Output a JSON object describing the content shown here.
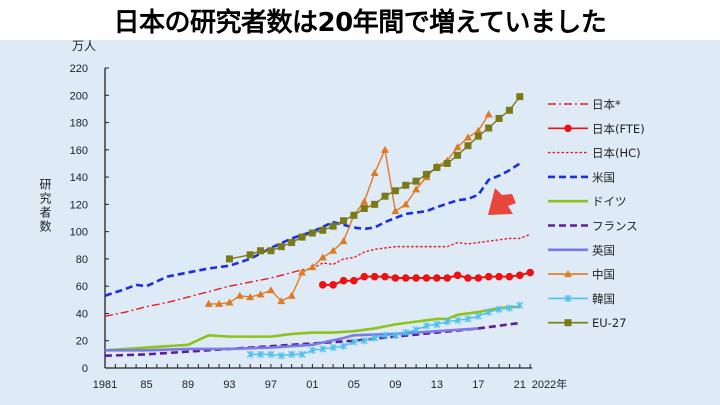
{
  "title": "日本の研究者数は20年間で増えていました",
  "chart_data": {
    "type": "line",
    "unit_label": "万人",
    "ylabel": "研究者数",
    "xlabel_suffix": "2022年",
    "ylim": [
      0,
      220
    ],
    "yticks": [
      0,
      20,
      40,
      60,
      80,
      100,
      120,
      140,
      160,
      180,
      200,
      220
    ],
    "xlim": [
      1981,
      2022
    ],
    "xtick_labels": [
      "1981",
      "85",
      "89",
      "93",
      "97",
      "01",
      "05",
      "09",
      "13",
      "17",
      "21"
    ],
    "xtick_years": [
      1981,
      1985,
      1989,
      1993,
      1997,
      2001,
      2005,
      2009,
      2013,
      2017,
      2021
    ],
    "legend_position": "right",
    "grid": false,
    "annotation": {
      "type": "arrow",
      "color": "#e8453c",
      "points_to": "日本(HC) 2017"
    },
    "series": [
      {
        "name": "日本*",
        "color": "#e02020",
        "style": "dashdot",
        "marker": "none",
        "x": [
          1981,
          1983,
          1985,
          1987,
          1989,
          1991,
          1993,
          1995,
          1997,
          1999,
          2000,
          2001
        ],
        "y": [
          38,
          41,
          45,
          48,
          52,
          56,
          60,
          63,
          66,
          70,
          72,
          73
        ]
      },
      {
        "name": "日本(FTE)",
        "color": "#ee1111",
        "style": "solid",
        "marker": "circle",
        "x": [
          2002,
          2003,
          2004,
          2005,
          2006,
          2007,
          2008,
          2009,
          2010,
          2011,
          2012,
          2013,
          2014,
          2015,
          2016,
          2017,
          2018,
          2019,
          2020,
          2021,
          2022
        ],
        "y": [
          61,
          61,
          64,
          64,
          67,
          67,
          67,
          66,
          66,
          66,
          66,
          66,
          66,
          68,
          66,
          66,
          67,
          67,
          67,
          68,
          70
        ]
      },
      {
        "name": "日本(HC)",
        "color": "#e02020",
        "style": "dotted",
        "marker": "none",
        "x": [
          2001,
          2002,
          2003,
          2004,
          2005,
          2006,
          2007,
          2008,
          2009,
          2010,
          2011,
          2012,
          2013,
          2014,
          2015,
          2016,
          2017,
          2018,
          2019,
          2020,
          2021,
          2022
        ],
        "y": [
          73,
          77,
          76,
          80,
          81,
          85,
          87,
          88,
          89,
          89,
          89,
          89,
          89,
          89,
          92,
          91,
          92,
          93,
          94,
          95,
          95,
          98
        ]
      },
      {
        "name": "米国",
        "color": "#1a2ee0",
        "style": "dashed",
        "marker": "none",
        "x": [
          1981,
          1983,
          1984,
          1985,
          1987,
          1989,
          1991,
          1993,
          1995,
          1997,
          1999,
          2001,
          2003,
          2004,
          2005,
          2006,
          2007,
          2008,
          2009,
          2010,
          2011,
          2012,
          2013,
          2015,
          2016,
          2017,
          2018,
          2019,
          2020,
          2021
        ],
        "y": [
          53,
          58,
          61,
          60,
          67,
          70,
          73,
          75,
          80,
          88,
          95,
          100,
          107,
          105,
          103,
          102,
          103,
          107,
          110,
          113,
          114,
          115,
          118,
          123,
          124,
          127,
          138,
          141,
          145,
          150
        ]
      },
      {
        "name": "ドイツ",
        "color": "#8cc41a",
        "style": "solid",
        "marker": "none",
        "x": [
          1981,
          1985,
          1989,
          1991,
          1993,
          1995,
          1997,
          1999,
          2001,
          2003,
          2005,
          2007,
          2009,
          2011,
          2013,
          2014,
          2015,
          2017,
          2019,
          2021
        ],
        "y": [
          13,
          15,
          17,
          24,
          23,
          23,
          23,
          25,
          26,
          26,
          27,
          29,
          32,
          34,
          36,
          36,
          39,
          41,
          44,
          45
        ]
      },
      {
        "name": "フランス",
        "color": "#5a1e9a",
        "style": "dashed",
        "marker": "none",
        "x": [
          1981,
          1985,
          1989,
          1993,
          1997,
          2001,
          2005,
          2009,
          2013,
          2017,
          2021
        ],
        "y": [
          9,
          10,
          12,
          14,
          16,
          18,
          20,
          23,
          26,
          29,
          33
        ]
      },
      {
        "name": "英国",
        "color": "#7a7ae8",
        "style": "solid",
        "marker": "none",
        "x": [
          1981,
          1985,
          1989,
          1993,
          1997,
          2001,
          2004,
          2005,
          2009,
          2013,
          2017
        ],
        "y": [
          13,
          13,
          14,
          14,
          15,
          17,
          22,
          24,
          25,
          27,
          29
        ]
      },
      {
        "name": "中国",
        "color": "#e07a22",
        "style": "solid",
        "marker": "triangle",
        "x": [
          1991,
          1992,
          1993,
          1994,
          1995,
          1996,
          1997,
          1998,
          1999,
          2000,
          2001,
          2002,
          2003,
          2004,
          2005,
          2006,
          2007,
          2008,
          2009,
          2010,
          2011,
          2012,
          2013,
          2014,
          2015,
          2016,
          2017,
          2018
        ],
        "y": [
          47,
          47,
          48,
          53,
          52,
          54,
          57,
          49,
          53,
          70,
          74,
          81,
          86,
          93,
          112,
          122,
          143,
          160,
          115,
          120,
          131,
          140,
          148,
          152,
          162,
          169,
          174,
          186
        ]
      },
      {
        "name": "韓国",
        "color": "#4cc0f0",
        "style": "solid",
        "marker": "asterisk",
        "x": [
          1995,
          1996,
          1997,
          1998,
          1999,
          2000,
          2001,
          2002,
          2003,
          2004,
          2005,
          2006,
          2007,
          2008,
          2009,
          2010,
          2011,
          2012,
          2013,
          2014,
          2015,
          2016,
          2017,
          2018,
          2019,
          2020,
          2021
        ],
        "y": [
          10,
          10,
          10,
          9,
          10,
          10,
          13,
          14,
          15,
          16,
          19,
          20,
          22,
          24,
          24,
          26,
          28,
          31,
          32,
          34,
          35,
          36,
          38,
          41,
          43,
          44,
          46
        ]
      },
      {
        "name": "EU-27",
        "color": "#7a7a18",
        "style": "solid",
        "marker": "square",
        "x": [
          1993,
          1995,
          1996,
          1997,
          1998,
          1999,
          2000,
          2001,
          2002,
          2003,
          2004,
          2005,
          2006,
          2007,
          2008,
          2009,
          2010,
          2011,
          2012,
          2013,
          2014,
          2015,
          2016,
          2017,
          2018,
          2019,
          2020,
          2021
        ],
        "y": [
          80,
          83,
          86,
          86,
          89,
          92,
          96,
          99,
          101,
          104,
          108,
          112,
          117,
          120,
          126,
          130,
          134,
          137,
          142,
          147,
          150,
          156,
          163,
          170,
          176,
          183,
          189,
          199
        ]
      }
    ]
  }
}
